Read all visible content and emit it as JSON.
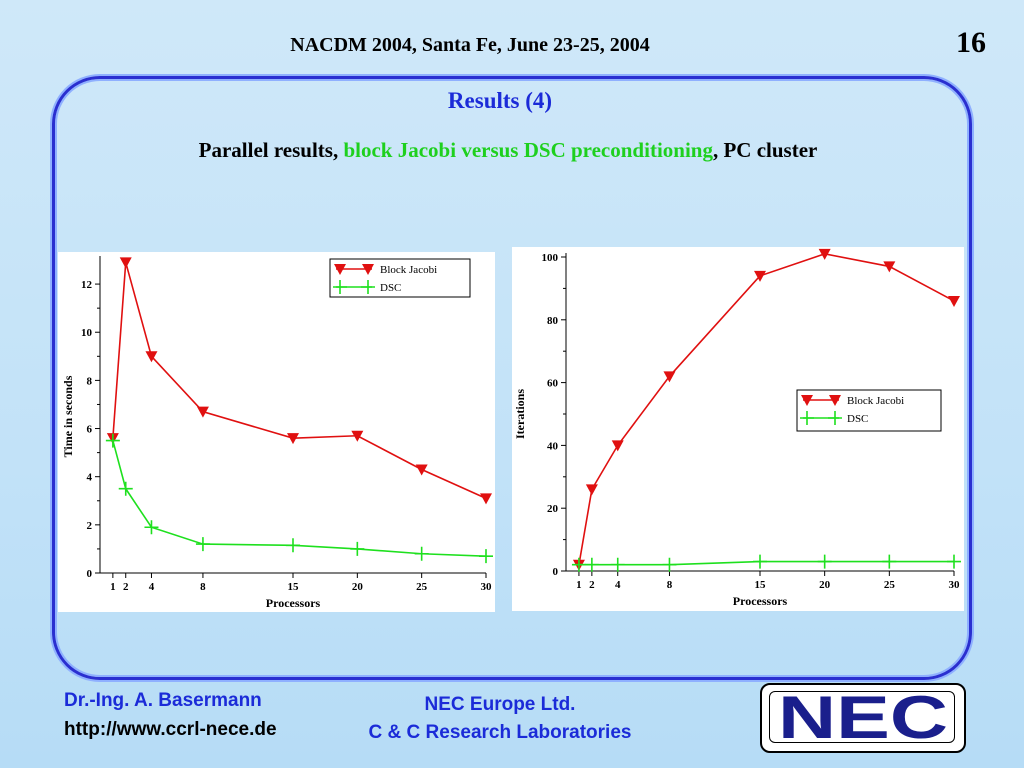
{
  "header": {
    "title": "NACDM 2004, Santa Fe, June 23-25, 2004",
    "page_number": "16"
  },
  "slide": {
    "title": "Results (4)",
    "subtitle_pre": "Parallel results, ",
    "subtitle_highlight": "block Jacobi versus DSC preconditioning",
    "subtitle_post": ", PC cluster"
  },
  "colors": {
    "block_jacobi": "#e01010",
    "dsc": "#1ee01e",
    "title_blue": "#1b2bd8"
  },
  "chart_data": [
    {
      "type": "line",
      "xlabel": "Processors",
      "ylabel": "Time in seconds",
      "xlim": [
        0,
        30
      ],
      "ylim": [
        0,
        13
      ],
      "xticks": [
        1,
        2,
        4,
        8,
        15,
        20,
        25,
        30
      ],
      "yticks": [
        0,
        2,
        4,
        6,
        8,
        10,
        12
      ],
      "legend_position": "top-right",
      "series": [
        {
          "name": "Block Jacobi",
          "marker": "triangle-down",
          "x": [
            1,
            2,
            4,
            8,
            15,
            20,
            25,
            30
          ],
          "y": [
            5.6,
            12.9,
            9.0,
            6.7,
            5.6,
            5.7,
            4.3,
            3.1
          ]
        },
        {
          "name": "DSC",
          "marker": "plus",
          "x": [
            1,
            2,
            4,
            8,
            15,
            20,
            25,
            30
          ],
          "y": [
            5.5,
            3.5,
            1.9,
            1.2,
            1.15,
            1.0,
            0.8,
            0.7
          ]
        }
      ]
    },
    {
      "type": "line",
      "xlabel": "Processors",
      "ylabel": "Iterations",
      "xlim": [
        0,
        30
      ],
      "ylim": [
        0,
        100
      ],
      "xticks": [
        1,
        2,
        4,
        8,
        15,
        20,
        25,
        30
      ],
      "yticks": [
        0,
        20,
        40,
        60,
        80,
        100
      ],
      "legend_position": "center-right",
      "series": [
        {
          "name": "Block Jacobi",
          "marker": "triangle-down",
          "x": [
            1,
            2,
            4,
            8,
            15,
            20,
            25,
            30
          ],
          "y": [
            2,
            26,
            40,
            62,
            94,
            101,
            97,
            86
          ]
        },
        {
          "name": "DSC",
          "marker": "plus",
          "x": [
            1,
            2,
            4,
            8,
            15,
            20,
            25,
            30
          ],
          "y": [
            2,
            2,
            2,
            2,
            3,
            3,
            3,
            3
          ]
        }
      ]
    }
  ],
  "footer": {
    "author": "Dr.-Ing. A. Basermann",
    "url": "http://www.ccrl-nece.de",
    "company": "NEC Europe Ltd.",
    "lab": "C & C Research Laboratories",
    "logo_text": "NEC"
  }
}
